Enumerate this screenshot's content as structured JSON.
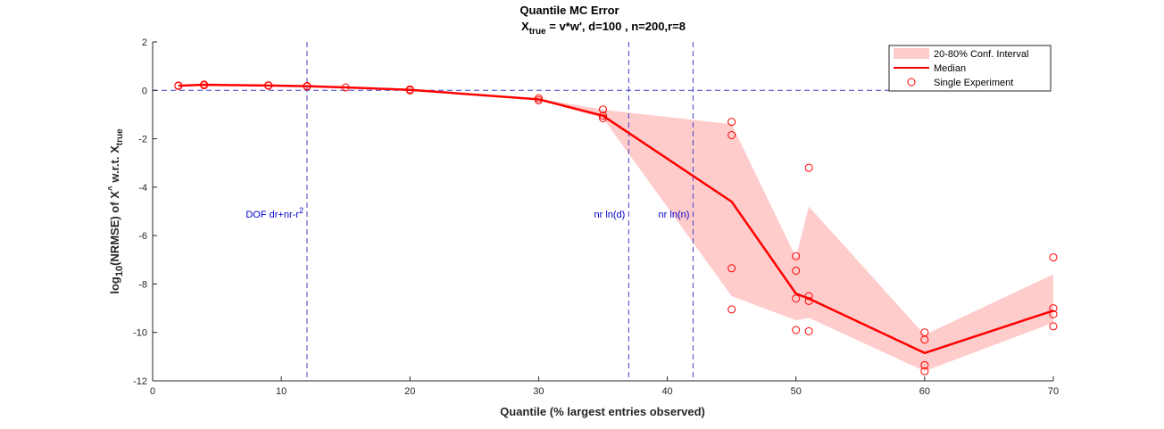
{
  "chart_data": {
    "type": "line",
    "title": "Quantile MC Error",
    "subtitle": {
      "main": "X",
      "sub": "true",
      "rest": " = v*w', d=100 , n=200,r=8"
    },
    "xlabel": "Quantile (% largest entries observed)",
    "ylabel": {
      "p1": "log",
      "p1_sub": "10",
      "p2": "(NRMSE) of X",
      "p2_sup": "^",
      "p3": " w.r.t. X",
      "p3_sub": "true"
    },
    "xlim": [
      0,
      70
    ],
    "ylim": [
      -12,
      2
    ],
    "xticks": [
      0,
      10,
      20,
      30,
      40,
      50,
      60,
      70
    ],
    "yticks": [
      -12,
      -10,
      -8,
      -6,
      -4,
      -2,
      0,
      2
    ],
    "grid": false,
    "legend_position": "top-right",
    "reference_lines": {
      "horizontal": [
        {
          "y": 0
        }
      ],
      "vertical": [
        {
          "x": 12,
          "label": "DOF dr+nr-r",
          "label_sup": "2"
        },
        {
          "x": 37,
          "label": "nr ln(d)"
        },
        {
          "x": 42,
          "label": "nr ln(n)"
        }
      ]
    },
    "series": [
      {
        "name": "20-80% Conf. Interval",
        "kind": "band",
        "color": "#ffcccc",
        "x": [
          2,
          4,
          9,
          12,
          15,
          20,
          30,
          35,
          45,
          50,
          51,
          60,
          70
        ],
        "lower": [
          0.18,
          0.22,
          0.19,
          0.16,
          0.11,
          0.01,
          -0.4,
          -1.15,
          -8.5,
          -9.5,
          -9.4,
          -11.6,
          -9.6
        ],
        "upper": [
          0.2,
          0.25,
          0.21,
          0.18,
          0.13,
          0.03,
          -0.34,
          -0.8,
          -1.4,
          -6.9,
          -4.8,
          -10.1,
          -7.6
        ]
      },
      {
        "name": "Median",
        "kind": "line",
        "color": "#ff0000",
        "x": [
          2,
          4,
          9,
          12,
          15,
          20,
          30,
          35,
          45,
          50,
          51,
          60,
          70
        ],
        "y": [
          0.19,
          0.23,
          0.2,
          0.17,
          0.12,
          0.02,
          -0.37,
          -1.05,
          -4.6,
          -8.4,
          -8.6,
          -10.85,
          -9.1
        ]
      },
      {
        "name": "Single Experiment",
        "kind": "scatter",
        "color": "#ff0000",
        "points": [
          [
            2,
            0.18
          ],
          [
            2,
            0.2
          ],
          [
            4,
            0.21
          ],
          [
            4,
            0.24
          ],
          [
            9,
            0.19
          ],
          [
            9,
            0.21
          ],
          [
            12,
            0.16
          ],
          [
            12,
            0.18
          ],
          [
            15,
            0.12
          ],
          [
            20,
            0.0
          ],
          [
            20,
            0.04
          ],
          [
            30,
            -0.33
          ],
          [
            30,
            -0.41
          ],
          [
            35,
            -0.79
          ],
          [
            35,
            -1.05
          ],
          [
            35,
            -1.15
          ],
          [
            45,
            -1.3
          ],
          [
            45,
            -1.85
          ],
          [
            45,
            -7.35
          ],
          [
            45,
            -9.05
          ],
          [
            50,
            -6.85
          ],
          [
            50,
            -7.45
          ],
          [
            50,
            -8.6
          ],
          [
            50,
            -9.9
          ],
          [
            51,
            -3.2
          ],
          [
            51,
            -8.5
          ],
          [
            51,
            -8.7
          ],
          [
            51,
            -9.95
          ],
          [
            60,
            -10.0
          ],
          [
            60,
            -10.3
          ],
          [
            60,
            -11.35
          ],
          [
            60,
            -11.6
          ],
          [
            70,
            -6.9
          ],
          [
            70,
            -9.0
          ],
          [
            70,
            -9.25
          ],
          [
            70,
            -9.75
          ]
        ]
      }
    ]
  }
}
